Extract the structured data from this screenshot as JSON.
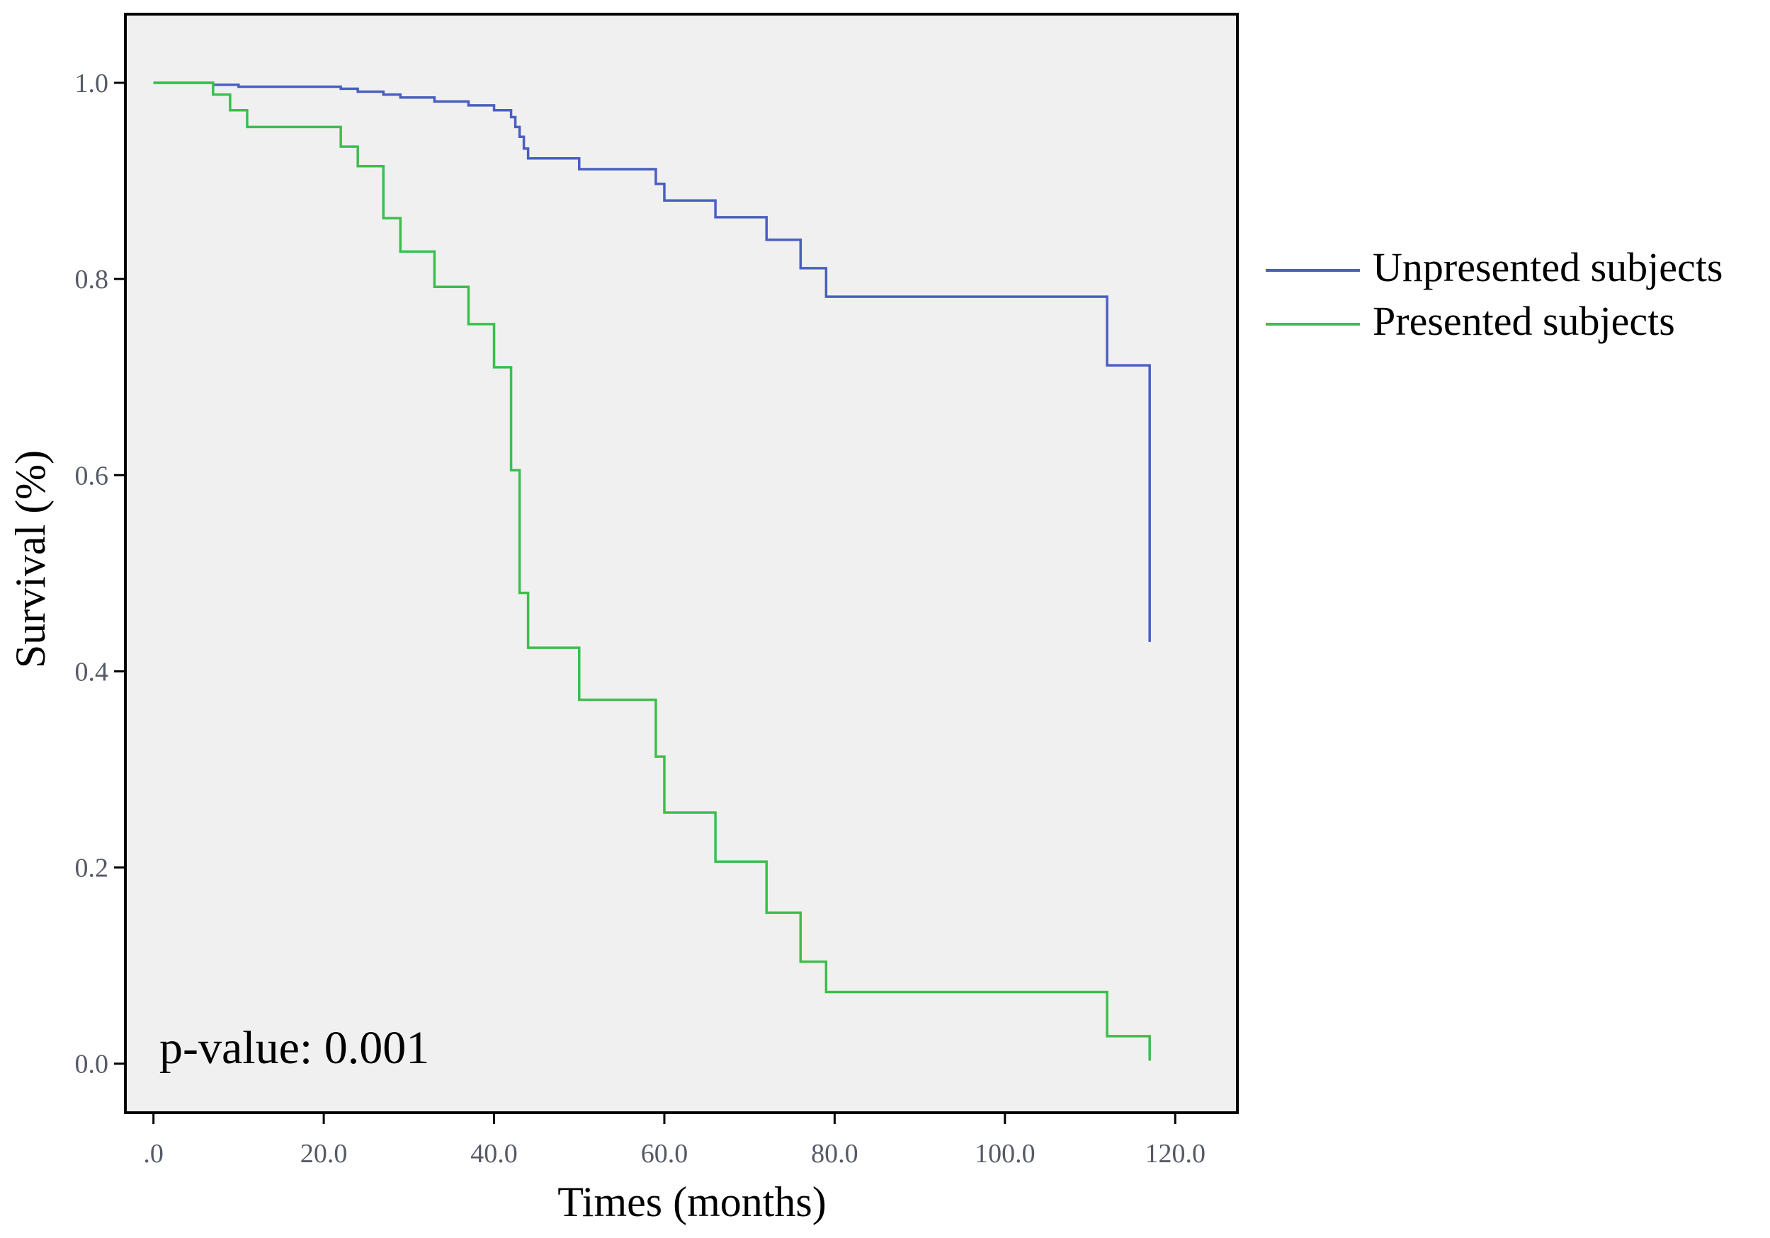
{
  "chart_data": {
    "type": "line",
    "subtype": "kaplan-meier-step",
    "title": "",
    "xlabel": "Times (months)",
    "ylabel": "Survival (%)",
    "xlim": [
      -3.3,
      127.3
    ],
    "ylim": [
      -0.05,
      1.07
    ],
    "x_ticks": [
      0,
      20,
      40,
      60,
      80,
      100,
      120
    ],
    "x_tick_labels": [
      ".0",
      "20.0",
      "40.0",
      "60.0",
      "80.0",
      "100.0",
      "120.0"
    ],
    "y_ticks": [
      0,
      0.2,
      0.4,
      0.6,
      0.8,
      1.0
    ],
    "y_tick_labels": [
      "0.0",
      "0.2",
      "0.4",
      "0.6",
      "0.8",
      "1.0"
    ],
    "grid": false,
    "legend_position": "right",
    "annotation": "p-value: 0.001",
    "series": [
      {
        "name": "Unpresented subjects",
        "color": "#4a5fc1",
        "steps": [
          [
            0,
            1.0
          ],
          [
            7,
            0.998
          ],
          [
            10,
            0.996
          ],
          [
            22,
            0.994
          ],
          [
            24,
            0.991
          ],
          [
            27,
            0.988
          ],
          [
            29,
            0.985
          ],
          [
            33,
            0.981
          ],
          [
            37,
            0.977
          ],
          [
            40,
            0.972
          ],
          [
            42,
            0.965
          ],
          [
            42.5,
            0.955
          ],
          [
            43,
            0.945
          ],
          [
            43.5,
            0.933
          ],
          [
            44,
            0.923
          ],
          [
            50,
            0.912
          ],
          [
            59,
            0.897
          ],
          [
            60,
            0.88
          ],
          [
            66,
            0.863
          ],
          [
            72,
            0.84
          ],
          [
            76,
            0.811
          ],
          [
            79,
            0.782
          ],
          [
            112,
            0.712
          ],
          [
            117,
            0.43
          ]
        ],
        "end_x": 117
      },
      {
        "name": "Presented subjects",
        "color": "#3cbf4c",
        "steps": [
          [
            0,
            1.0
          ],
          [
            7,
            0.988
          ],
          [
            9,
            0.972
          ],
          [
            11,
            0.955
          ],
          [
            22,
            0.935
          ],
          [
            24,
            0.915
          ],
          [
            27,
            0.862
          ],
          [
            29,
            0.828
          ],
          [
            33,
            0.792
          ],
          [
            37,
            0.754
          ],
          [
            40,
            0.71
          ],
          [
            42,
            0.605
          ],
          [
            43,
            0.48
          ],
          [
            44,
            0.424
          ],
          [
            50,
            0.371
          ],
          [
            59,
            0.313
          ],
          [
            60,
            0.256
          ],
          [
            66,
            0.206
          ],
          [
            72,
            0.154
          ],
          [
            76,
            0.104
          ],
          [
            79,
            0.073
          ],
          [
            112,
            0.028
          ],
          [
            117,
            0.003
          ]
        ],
        "end_x": 117
      }
    ]
  }
}
